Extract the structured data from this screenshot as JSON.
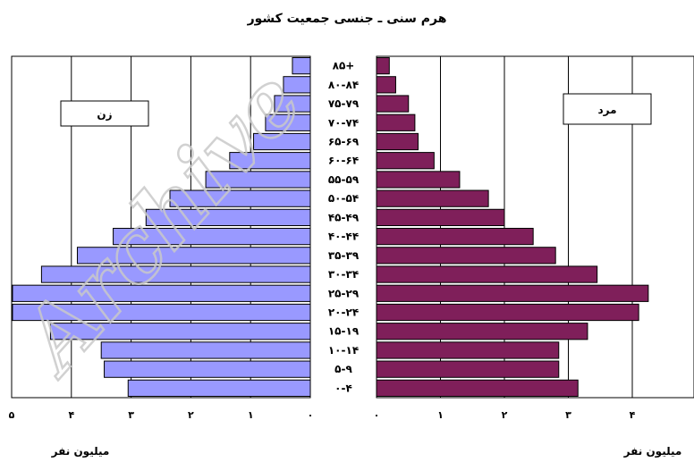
{
  "chart_data": {
    "type": "bar",
    "title": "هرم سنی ـ جنسی جمعیت کشور",
    "categories": [
      "۰-۴",
      "۵-۹",
      "۱۰-۱۴",
      "۱۵-۱۹",
      "۲۰-۲۴",
      "۲۵-۲۹",
      "۳۰-۳۴",
      "۳۵-۳۹",
      "۴۰-۴۴",
      "۴۵-۴۹",
      "۵۰-۵۴",
      "۵۵-۵۹",
      "۶۰-۶۴",
      "۶۵-۶۹",
      "۷۰-۷۴",
      "۷۵-۷۹",
      "۸۰-۸۴",
      "۸۵+"
    ],
    "series": [
      {
        "name": "زن",
        "color": "#9999ff",
        "side": "left",
        "values": [
          3.05,
          3.45,
          3.5,
          4.35,
          5.2,
          5.35,
          4.5,
          3.9,
          3.3,
          2.75,
          2.35,
          1.75,
          1.35,
          0.95,
          0.75,
          0.6,
          0.45,
          0.3
        ]
      },
      {
        "name": "مرد",
        "color": "#7f1f5a",
        "side": "right",
        "values": [
          3.15,
          2.85,
          2.85,
          3.3,
          4.1,
          4.25,
          3.45,
          2.8,
          2.45,
          2.0,
          1.75,
          1.3,
          0.9,
          0.65,
          0.6,
          0.5,
          0.3,
          0.2
        ]
      }
    ],
    "left_axis": {
      "ticks": [
        "۰",
        "۱",
        "۲",
        "۳",
        "۴",
        "۵"
      ],
      "xlim": [
        0,
        5
      ],
      "label": "میلیون نفر"
    },
    "right_axis": {
      "ticks": [
        "۰",
        "۱",
        "۲",
        "۳",
        "۴"
      ],
      "xlim": [
        0,
        4.6
      ],
      "label": "میلیون نفر"
    },
    "grid": true,
    "legend": "top-left / top-right boxes"
  },
  "watermark": "Archive"
}
